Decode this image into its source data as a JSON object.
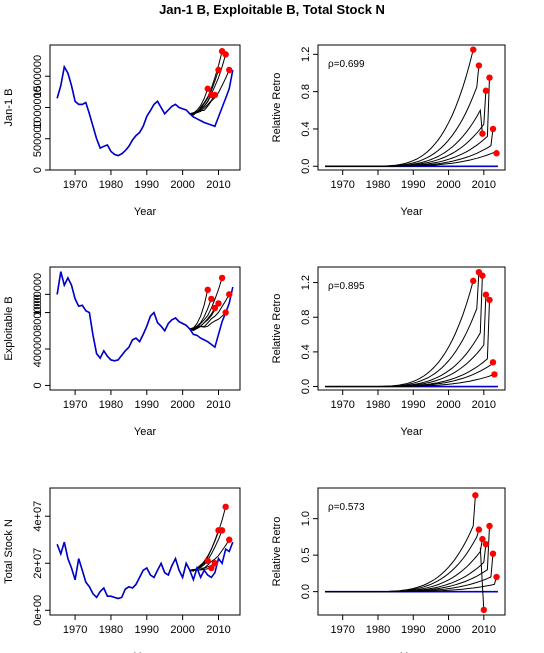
{
  "title": "Jan-1 B, Exploitable B, Total Stock N",
  "colors": {
    "retro": "#000000",
    "final": "#0000cd",
    "point": "#ff0000",
    "zero": "#0000cd"
  },
  "chart_data": [
    {
      "type": "line",
      "panel": "left-1",
      "xlabel": "Year",
      "ylabel": "Jan-1 B",
      "xlim": [
        1963,
        2016
      ],
      "ylim": [
        0,
        2000000
      ],
      "xticks": [
        1970,
        1980,
        1990,
        2000,
        2010
      ],
      "xtick_labels": [
        "1970",
        "1980",
        "1990",
        "2000",
        "2010"
      ],
      "yticks": [
        0,
        500000,
        1000000,
        1500000
      ],
      "ytick_labels": [
        "0",
        "500000",
        "1000000",
        "1500000"
      ],
      "base_x": [
        1965,
        1966,
        1967,
        1968,
        1969,
        1970,
        1971,
        1972,
        1973,
        1974,
        1975,
        1976,
        1977,
        1978,
        1979,
        1980,
        1981,
        1982,
        1983,
        1984,
        1985,
        1986,
        1987,
        1988,
        1989,
        1990,
        1991,
        1992,
        1993,
        1994,
        1995,
        1996,
        1997,
        1998,
        1999,
        2000,
        2001,
        2002
      ],
      "base_y": [
        1150000,
        1350000,
        1650000,
        1550000,
        1350000,
        1100000,
        1050000,
        1050000,
        1080000,
        900000,
        700000,
        500000,
        350000,
        380000,
        400000,
        300000,
        250000,
        230000,
        260000,
        310000,
        380000,
        480000,
        550000,
        600000,
        700000,
        860000,
        950000,
        1050000,
        1100000,
        1000000,
        900000,
        960000,
        1020000,
        1050000,
        1000000,
        980000,
        960000,
        900000
      ],
      "retro_end_x": [
        2007,
        2008,
        2009,
        2010,
        2011,
        2012,
        2013
      ],
      "retro_end_y": [
        1300000,
        1200000,
        1200000,
        1600000,
        1900000,
        1850000,
        1600000
      ],
      "final_tail_x": [
        2003,
        2004,
        2005,
        2006,
        2007,
        2008,
        2009,
        2010,
        2011,
        2012,
        2013,
        2014
      ],
      "final_tail_y": [
        850000,
        820000,
        790000,
        760000,
        740000,
        720000,
        700000,
        850000,
        1000000,
        1150000,
        1300000,
        1600000
      ],
      "annotation": ""
    },
    {
      "type": "line",
      "panel": "right-1",
      "xlabel": "Year",
      "ylabel": "Relative Retro",
      "xlim": [
        1963,
        2016
      ],
      "ylim": [
        -0.04,
        1.3
      ],
      "xticks": [
        1970,
        1980,
        1990,
        2000,
        2010
      ],
      "xtick_labels": [
        "1970",
        "1980",
        "1990",
        "2000",
        "2010"
      ],
      "yticks": [
        0.0,
        0.4,
        0.8,
        1.2
      ],
      "ytick_labels": [
        "0.0",
        "0.4",
        "0.8",
        "1.2"
      ],
      "peak_x": [
        2007,
        2008,
        2009,
        2010,
        2011,
        2012,
        2013
      ],
      "peak_y": [
        1.25,
        0.85,
        0.6,
        0.45,
        0.32,
        0.22,
        0.15
      ],
      "end_y": [
        1.25,
        1.08,
        0.35,
        0.81,
        0.95,
        0.4,
        0.14
      ],
      "annotation": "ρ=0.699"
    },
    {
      "type": "line",
      "panel": "left-2",
      "xlabel": "Year",
      "ylabel": "Exploitable B",
      "xlim": [
        1963,
        2016
      ],
      "ylim": [
        -50000,
        1300000
      ],
      "xticks": [
        1970,
        1980,
        1990,
        2000,
        2010
      ],
      "xtick_labels": [
        "1970",
        "1980",
        "1990",
        "2000",
        "2010"
      ],
      "yticks": [
        0,
        400000,
        800000,
        1000000
      ],
      "ytick_labels": [
        "0",
        "400000",
        "800000",
        "1000000"
      ],
      "base_x": [
        1965,
        1966,
        1967,
        1968,
        1969,
        1970,
        1971,
        1972,
        1973,
        1974,
        1975,
        1976,
        1977,
        1978,
        1979,
        1980,
        1981,
        1982,
        1983,
        1984,
        1985,
        1986,
        1987,
        1988,
        1989,
        1990,
        1991,
        1992,
        1993,
        1994,
        1995,
        1996,
        1997,
        1998,
        1999,
        2000,
        2001,
        2002
      ],
      "base_y": [
        1000000,
        1250000,
        1100000,
        1180000,
        1100000,
        950000,
        870000,
        880000,
        820000,
        800000,
        550000,
        350000,
        300000,
        380000,
        320000,
        280000,
        270000,
        280000,
        330000,
        380000,
        420000,
        500000,
        520000,
        480000,
        560000,
        650000,
        760000,
        800000,
        690000,
        650000,
        600000,
        680000,
        720000,
        740000,
        700000,
        680000,
        660000,
        620000
      ],
      "retro_end_x": [
        2007,
        2008,
        2009,
        2010,
        2011,
        2012,
        2013
      ],
      "retro_end_y": [
        1050000,
        950000,
        850000,
        900000,
        1180000,
        800000,
        1000000
      ],
      "final_tail_x": [
        2003,
        2004,
        2005,
        2006,
        2007,
        2008,
        2009,
        2010,
        2011,
        2012,
        2013,
        2014
      ],
      "final_tail_y": [
        560000,
        550000,
        520000,
        500000,
        480000,
        450000,
        420000,
        560000,
        700000,
        800000,
        900000,
        1080000
      ],
      "annotation": ""
    },
    {
      "type": "line",
      "panel": "right-2",
      "xlabel": "Year",
      "ylabel": "Relative Retro",
      "xlim": [
        1963,
        2016
      ],
      "ylim": [
        -0.04,
        1.38
      ],
      "xticks": [
        1970,
        1980,
        1990,
        2000,
        2010
      ],
      "xtick_labels": [
        "1970",
        "1980",
        "1990",
        "2000",
        "2010"
      ],
      "yticks": [
        0.0,
        0.4,
        0.8,
        1.2
      ],
      "ytick_labels": [
        "0.0",
        "0.4",
        "0.8",
        "1.2"
      ],
      "peak_x": [
        2007,
        2008,
        2009,
        2010,
        2011,
        2012,
        2013
      ],
      "peak_y": [
        1.22,
        0.9,
        0.62,
        0.48,
        0.32,
        0.25,
        0.14
      ],
      "end_y": [
        1.22,
        1.32,
        1.28,
        1.06,
        1.0,
        0.28,
        0.14
      ],
      "annotation": "ρ=0.895"
    },
    {
      "type": "line",
      "panel": "left-3",
      "xlabel": "Year",
      "ylabel": "Total Stock N",
      "xlim": [
        1963,
        2016
      ],
      "ylim": [
        -2000000,
        52000000
      ],
      "xticks": [
        1970,
        1980,
        1990,
        2000,
        2010
      ],
      "xtick_labels": [
        "1970",
        "1980",
        "1990",
        "2000",
        "2010"
      ],
      "yticks": [
        0,
        20000000,
        40000000
      ],
      "ytick_labels": [
        "0e+00",
        "2e+07",
        "4e+07"
      ],
      "base_x": [
        1965,
        1966,
        1967,
        1968,
        1969,
        1970,
        1971,
        1972,
        1973,
        1974,
        1975,
        1976,
        1977,
        1978,
        1979,
        1980,
        1981,
        1982,
        1983,
        1984,
        1985,
        1986,
        1987,
        1988,
        1989,
        1990,
        1991,
        1992,
        1993,
        1994,
        1995,
        1996,
        1997,
        1998,
        1999,
        2000,
        2001,
        2002
      ],
      "base_y": [
        28000000,
        24000000,
        29000000,
        22000000,
        18000000,
        13000000,
        22000000,
        17000000,
        12000000,
        10000000,
        7000000,
        5500000,
        8000000,
        9500000,
        6000000,
        6000000,
        5500000,
        5000000,
        5500000,
        9000000,
        10000000,
        9500000,
        11000000,
        14000000,
        17000000,
        18000000,
        15000000,
        14000000,
        17000000,
        20000000,
        16000000,
        15000000,
        19000000,
        22000000,
        17000000,
        14000000,
        20000000,
        17000000
      ],
      "retro_end_x": [
        2007,
        2008,
        2009,
        2010,
        2011,
        2012,
        2013
      ],
      "retro_end_y": [
        21000000,
        18000000,
        20000000,
        34000000,
        34000000,
        44000000,
        30000000
      ],
      "final_tail_x": [
        2003,
        2004,
        2005,
        2006,
        2007,
        2008,
        2009,
        2010,
        2011,
        2012,
        2013,
        2014
      ],
      "final_tail_y": [
        13000000,
        18000000,
        14000000,
        17000000,
        15000000,
        14000000,
        16000000,
        22000000,
        20000000,
        26000000,
        25000000,
        29000000
      ],
      "annotation": ""
    },
    {
      "type": "line",
      "panel": "right-3",
      "xlabel": "Year",
      "ylabel": "Relative Retro",
      "xlim": [
        1963,
        2016
      ],
      "ylim": [
        -0.32,
        1.42
      ],
      "xticks": [
        1970,
        1980,
        1990,
        2000,
        2010
      ],
      "xtick_labels": [
        "1970",
        "1980",
        "1990",
        "2000",
        "2010"
      ],
      "yticks": [
        0.0,
        0.5,
        1.0
      ],
      "ytick_labels": [
        "0.0",
        "0.5",
        "1.0"
      ],
      "peak_x": [
        2007,
        2008,
        2009,
        2010,
        2011,
        2012,
        2013
      ],
      "peak_y": [
        0.9,
        0.75,
        0.55,
        0.4,
        0.3,
        0.2,
        0.1
      ],
      "end_y": [
        1.32,
        0.85,
        0.72,
        0.65,
        0.9,
        0.52,
        0.2
      ],
      "extra_point": {
        "x": 2010,
        "y": -0.25
      },
      "annotation": "ρ=0.573"
    }
  ]
}
